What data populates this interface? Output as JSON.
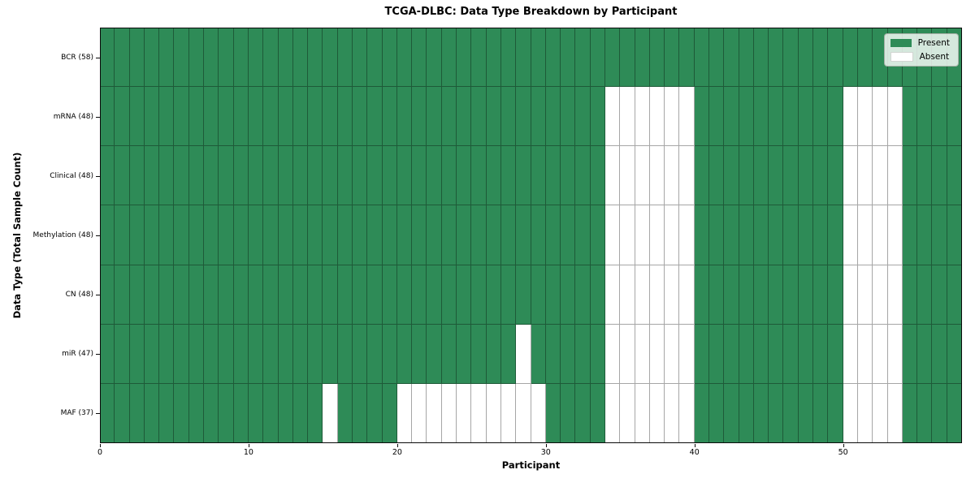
{
  "chart_data": {
    "type": "heatmap",
    "title": "TCGA-DLBC: Data Type Breakdown by Participant",
    "xlabel": "Participant",
    "ylabel": "Data Type (Total Sample Count)",
    "n_participants": 58,
    "x_ticks": [
      0,
      10,
      20,
      30,
      40,
      50
    ],
    "grid": true,
    "legend": {
      "position": "upper right",
      "entries": [
        {
          "label": "Present",
          "color": "#2E8B57"
        },
        {
          "label": "Absent",
          "color": "#FFFFFF"
        }
      ]
    },
    "colors": {
      "present": "#2E8B57",
      "absent": "#FFFFFF",
      "grid_line": "rgba(0,0,0,0.35)",
      "frame": "#0a0a0a"
    },
    "rows": [
      {
        "label": "BCR (58)",
        "data_type": "BCR",
        "present_count": 58,
        "absent_participants": []
      },
      {
        "label": "mRNA (48)",
        "data_type": "mRNA",
        "present_count": 48,
        "absent_participants": [
          34,
          35,
          36,
          37,
          38,
          39,
          50,
          51,
          52,
          53
        ]
      },
      {
        "label": "Clinical (48)",
        "data_type": "Clinical",
        "present_count": 48,
        "absent_participants": [
          34,
          35,
          36,
          37,
          38,
          39,
          50,
          51,
          52,
          53
        ]
      },
      {
        "label": "Methylation (48)",
        "data_type": "Methylation",
        "present_count": 48,
        "absent_participants": [
          34,
          35,
          36,
          37,
          38,
          39,
          50,
          51,
          52,
          53
        ]
      },
      {
        "label": "CN (48)",
        "data_type": "CN",
        "present_count": 48,
        "absent_participants": [
          34,
          35,
          36,
          37,
          38,
          39,
          50,
          51,
          52,
          53
        ]
      },
      {
        "label": "miR (47)",
        "data_type": "miR",
        "present_count": 47,
        "absent_participants": [
          28,
          34,
          35,
          36,
          37,
          38,
          39,
          50,
          51,
          52,
          53
        ]
      },
      {
        "label": "MAF (37)",
        "data_type": "MAF",
        "present_count": 37,
        "absent_participants": [
          15,
          20,
          21,
          22,
          23,
          24,
          25,
          26,
          27,
          28,
          29,
          34,
          35,
          36,
          37,
          38,
          39,
          50,
          51,
          52,
          53
        ]
      }
    ]
  }
}
